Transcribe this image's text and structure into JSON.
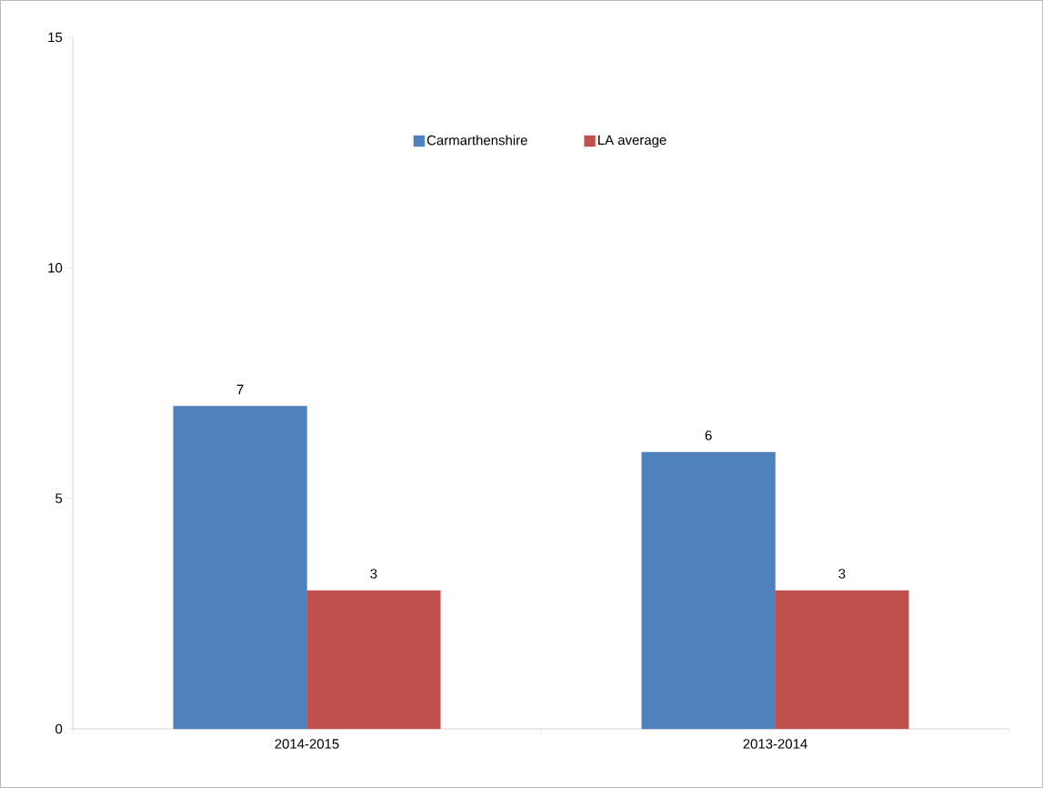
{
  "chart_data": {
    "type": "bar",
    "categories": [
      "2014-2015",
      "2013-2014"
    ],
    "series": [
      {
        "name": "Carmarthenshire",
        "color": "#4f81bd",
        "values": [
          7,
          6
        ]
      },
      {
        "name": "LA average",
        "color": "#c0504d",
        "values": [
          3,
          3
        ]
      }
    ],
    "ylim": [
      0,
      15
    ],
    "yticks": [
      0,
      5,
      10,
      15
    ],
    "data_labels": true,
    "legend": "top",
    "grid": false
  }
}
